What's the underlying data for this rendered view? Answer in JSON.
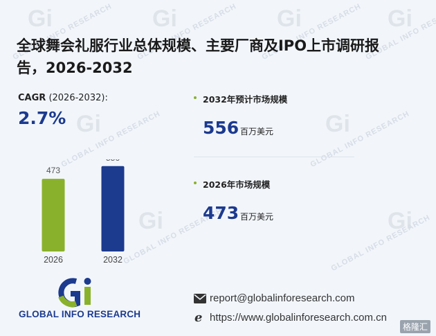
{
  "title": "全球舞会礼服行业总体规模、主要厂商及IPO上市调研报告，2026-2032",
  "cagr": {
    "label": "CAGR",
    "period": "(2026-2032):",
    "value": "2.7%"
  },
  "metrics": [
    {
      "label": "2032年预计市场规模",
      "value": "556",
      "unit": "百万美元"
    },
    {
      "label": "2026年市场规模",
      "value": "473",
      "unit": "百万美元"
    }
  ],
  "chart_data": {
    "type": "bar",
    "categories": [
      "2026",
      "2032"
    ],
    "values": [
      473,
      556
    ],
    "value_labels": [
      "473",
      "556"
    ],
    "colors": [
      "#8ab12b",
      "#1c3a8e"
    ],
    "ylim": [
      0,
      600
    ]
  },
  "logo": {
    "text": "GLOBAL INFO RESEARCH",
    "mark": "Gi"
  },
  "contact": {
    "email": "report@globalinforesearch.com",
    "website": "https://www.globalinforesearch.com.cn"
  },
  "watermark": {
    "text": "GLOBAL INFO RESEARCH",
    "mark": "Gi"
  },
  "source_badge": "格隆汇"
}
